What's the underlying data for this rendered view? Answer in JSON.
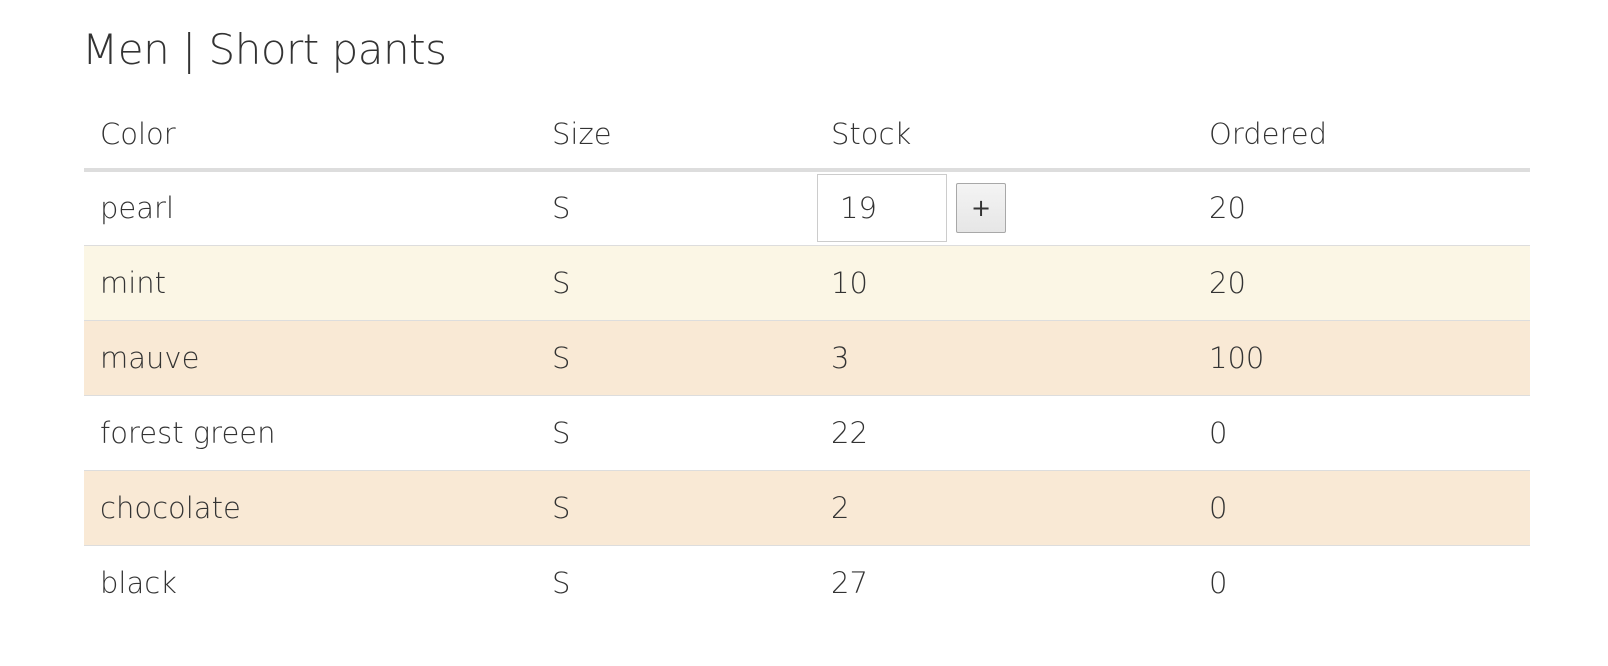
{
  "page": {
    "title": "Men | Short pants"
  },
  "table": {
    "headers": {
      "color": "Color",
      "size": "Size",
      "stock": "Stock",
      "ordered": "Ordered"
    },
    "rows": [
      {
        "color": "pearl",
        "size": "S",
        "stock": "19",
        "ordered": "20",
        "bg": "#ffffff",
        "editing": true
      },
      {
        "color": "mint",
        "size": "S",
        "stock": "10",
        "ordered": "20",
        "bg": "#fbf6e5"
      },
      {
        "color": "mauve",
        "size": "S",
        "stock": "3",
        "ordered": "100",
        "bg": "#f9e9d5"
      },
      {
        "color": "forest green",
        "size": "S",
        "stock": "22",
        "ordered": "0",
        "bg": "#ffffff"
      },
      {
        "color": "chocolate",
        "size": "S",
        "stock": "2",
        "ordered": "0",
        "bg": "#f9e9d5"
      },
      {
        "color": "black",
        "size": "S",
        "stock": "27",
        "ordered": "0",
        "bg": "#ffffff"
      }
    ],
    "increment_label": "+"
  },
  "colors": {
    "border": "#dddddd",
    "text": "#333333"
  }
}
